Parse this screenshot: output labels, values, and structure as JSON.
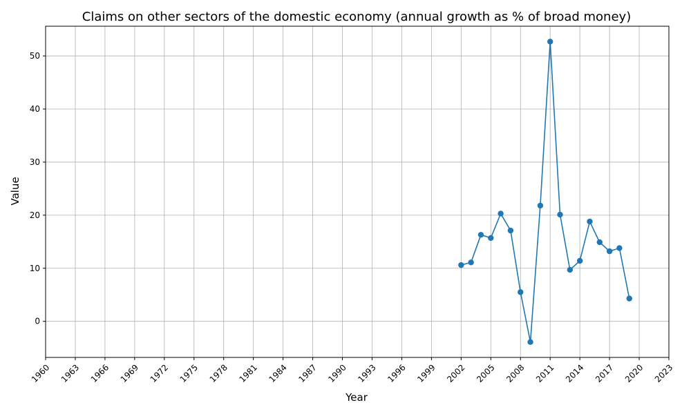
{
  "chart_data": {
    "type": "line",
    "title": "Claims on other sectors of the domestic economy (annual growth as % of broad money)",
    "xlabel": "Year",
    "ylabel": "Value",
    "xlim": [
      1960,
      2023
    ],
    "ylim": [
      -6.8,
      55.6
    ],
    "x_ticks": [
      1960,
      1963,
      1966,
      1969,
      1972,
      1975,
      1978,
      1981,
      1984,
      1987,
      1990,
      1993,
      1996,
      1999,
      2002,
      2005,
      2008,
      2011,
      2014,
      2017,
      2020,
      2023
    ],
    "y_ticks": [
      0,
      10,
      20,
      30,
      40,
      50
    ],
    "grid": true,
    "series": [
      {
        "color": "#1f77b4",
        "marker": "circle",
        "x": [
          2002,
          2003,
          2004,
          2005,
          2006,
          2007,
          2008,
          2009,
          2010,
          2011,
          2012,
          2013,
          2014,
          2015,
          2016,
          2017,
          2018,
          2019
        ],
        "y": [
          10.6,
          11.1,
          16.3,
          15.7,
          20.3,
          17.1,
          5.5,
          -3.9,
          21.8,
          52.7,
          20.1,
          9.7,
          11.4,
          18.8,
          14.9,
          13.2,
          13.8,
          4.3
        ]
      }
    ]
  }
}
